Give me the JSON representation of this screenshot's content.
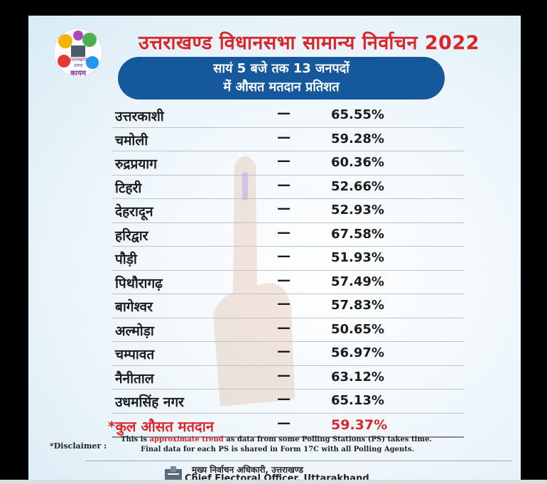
{
  "logo": {
    "text_top": "उत्तराखण्ड",
    "text_mid": "उत्सव",
    "text_bottom": "कायम"
  },
  "title": "उत्तराखण्ड विधानसभा सामान्य निर्वाचन 2022",
  "banner": {
    "line1": "सायं 5 बजे तक 13 जनपदों",
    "line2": "में औसत मतदान प्रतिशत"
  },
  "rows": [
    {
      "name": "उत्तरकाशी",
      "dash": "—",
      "value": "65.55%"
    },
    {
      "name": "चमोली",
      "dash": "—",
      "value": "59.28%"
    },
    {
      "name": "रुद्रप्रयाग",
      "dash": "—",
      "value": "60.36%"
    },
    {
      "name": "टिहरी",
      "dash": "—",
      "value": "52.66%"
    },
    {
      "name": "देहरादून",
      "dash": "—",
      "value": "52.93%"
    },
    {
      "name": "हरिद्वार",
      "dash": "—",
      "value": "67.58%"
    },
    {
      "name": "पौड़ी",
      "dash": "—",
      "value": "51.93%"
    },
    {
      "name": "पिथौरागढ़",
      "dash": "—",
      "value": "57.49%"
    },
    {
      "name": "बागेश्वर",
      "dash": "—",
      "value": "57.83%"
    },
    {
      "name": "अल्मोड़ा",
      "dash": "—",
      "value": "50.65%"
    },
    {
      "name": "चम्पावत",
      "dash": "—",
      "value": "56.97%"
    },
    {
      "name": "नैनीताल",
      "dash": "—",
      "value": "63.12%"
    },
    {
      "name": "उधमसिंह नगर",
      "dash": "—",
      "value": "65.13%"
    }
  ],
  "total": {
    "name": "*कुल औसत मतदान",
    "dash": "—",
    "value": "59.37%"
  },
  "disclaimer": {
    "label": "*Disclaimer :",
    "line1_a": "This is ",
    "line1_red": "approximate trend",
    "line1_b": " as data from some Polling Stations (PS) takes time.",
    "line2": "Final data for each PS is shared in Form 17C with all Polling Agents."
  },
  "footer": {
    "line1": "मुख्य निर्वाचन अधिकारी, उत्तराखण्ड",
    "line2": "Chief Electoral Officer, Uttarakhand"
  },
  "colors": {
    "title_red": "#d9262c",
    "banner_blue": "#15589b",
    "text_dark": "#1c1c1c"
  }
}
